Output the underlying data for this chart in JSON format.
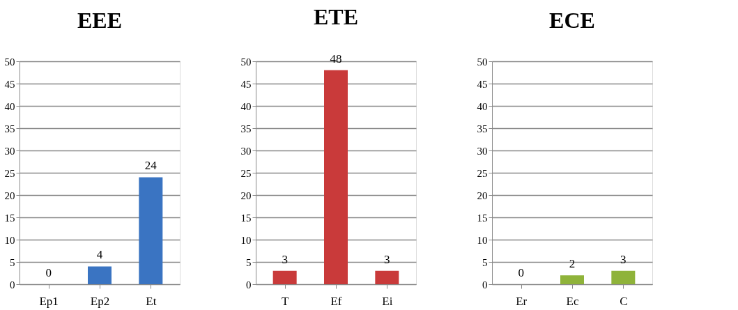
{
  "chart_data": [
    {
      "type": "bar",
      "title": "EEE",
      "categories": [
        "Ep1",
        "Ep2",
        "Et"
      ],
      "values": [
        0,
        4,
        24
      ],
      "color": "#3a74c2",
      "ylim": [
        0,
        50
      ],
      "yticks": [
        0,
        5,
        10,
        15,
        20,
        25,
        30,
        35,
        40,
        45,
        50
      ],
      "grid": "y",
      "data_labels": true
    },
    {
      "type": "bar",
      "title": "ETE",
      "categories": [
        "T",
        "Ef",
        "Ei"
      ],
      "values": [
        3,
        48,
        3
      ],
      "color": "#c93a3a",
      "ylim": [
        0,
        50
      ],
      "yticks": [
        0,
        5,
        10,
        15,
        20,
        25,
        30,
        35,
        40,
        45,
        50
      ],
      "grid": "y",
      "data_labels": true
    },
    {
      "type": "bar",
      "title": "ECE",
      "categories": [
        "Er",
        "Ec",
        "C"
      ],
      "values": [
        0,
        2,
        3
      ],
      "color": "#8fb33a",
      "ylim": [
        0,
        50
      ],
      "yticks": [
        0,
        5,
        10,
        15,
        20,
        25,
        30,
        35,
        40,
        45,
        50
      ],
      "grid": "y",
      "data_labels": true
    }
  ]
}
